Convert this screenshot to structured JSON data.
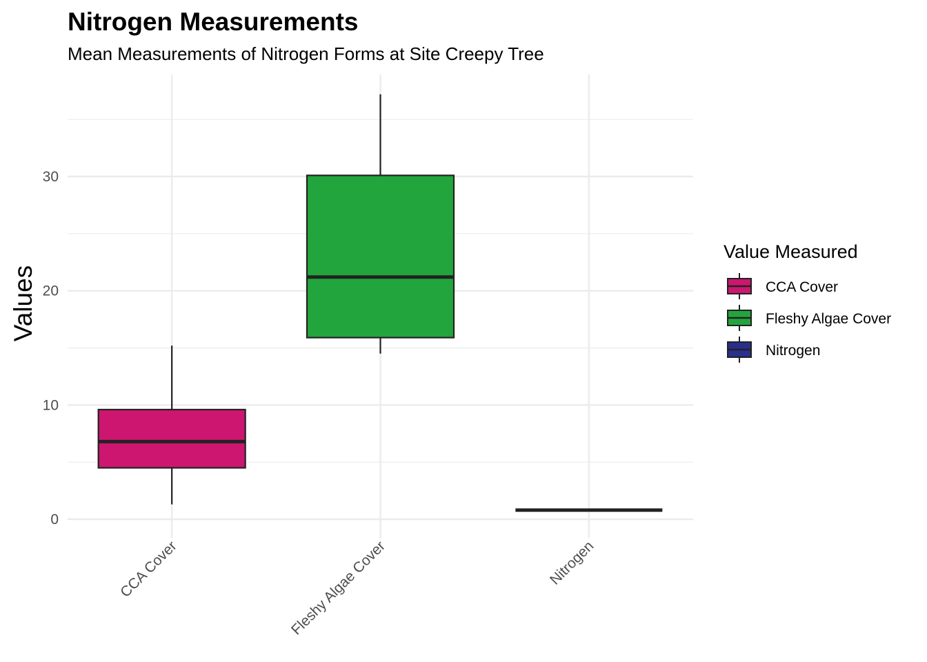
{
  "chart_data": {
    "type": "boxplot",
    "title": "Nitrogen Measurements",
    "subtitle": "Mean Measurements of Nitrogen Forms at Site Creepy Tree",
    "xlabel": "",
    "ylabel": "Values",
    "ylim": [
      -1.5,
      39
    ],
    "yticks": [
      0,
      10,
      20,
      30
    ],
    "y_minor_ticks": [
      5,
      15,
      25,
      35
    ],
    "grid": true,
    "categories": [
      "CCA Cover",
      "Fleshy Algae Cover",
      "Nitrogen"
    ],
    "series": [
      {
        "category": "CCA Cover",
        "min": 1.3,
        "q1": 4.5,
        "median": 6.8,
        "q3": 9.6,
        "max": 15.2,
        "color": "#CC1670"
      },
      {
        "category": "Fleshy Algae Cover",
        "min": 14.5,
        "q1": 15.9,
        "median": 21.2,
        "q3": 30.1,
        "max": 37.2,
        "color": "#23A53D"
      },
      {
        "category": "Nitrogen",
        "min": 0.8,
        "q1": 0.8,
        "median": 0.8,
        "q3": 0.8,
        "max": 0.8,
        "color": "#2A2E8C"
      }
    ],
    "legend": {
      "title": "Value Measured",
      "placement": "right",
      "items": [
        {
          "label": "CCA Cover",
          "color": "#CC1670"
        },
        {
          "label": "Fleshy Algae Cover",
          "color": "#23A53D"
        },
        {
          "label": "Nitrogen",
          "color": "#2A2E8C"
        }
      ]
    }
  }
}
